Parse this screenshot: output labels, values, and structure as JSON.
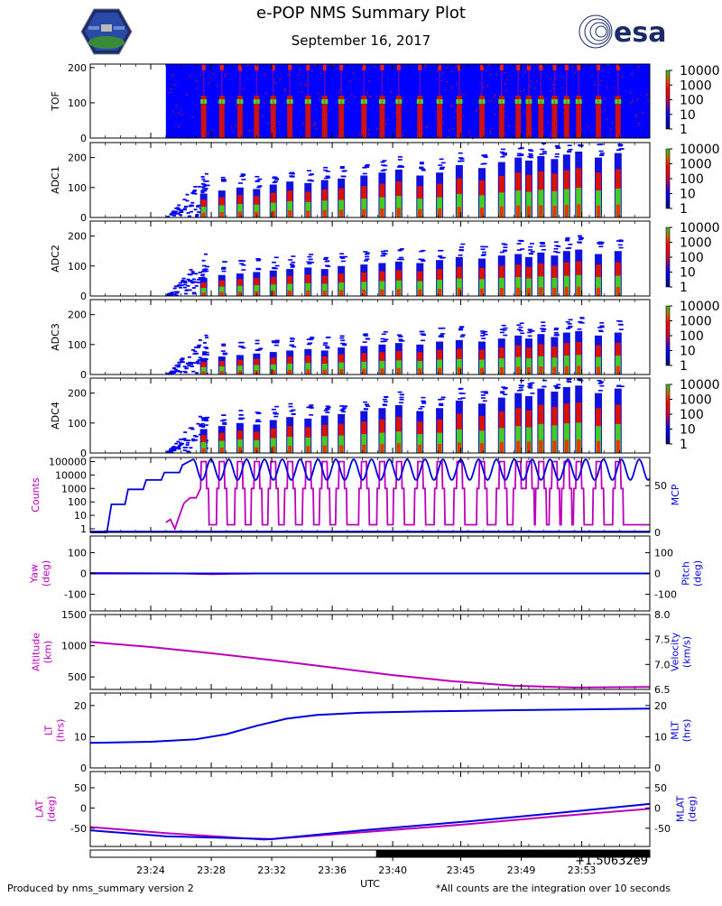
{
  "header": {
    "title": "e-POP NMS Summary Plot",
    "date": "September 16, 2017",
    "left_logo_icon": "epop-mission-patch-icon",
    "right_logo_icon": "esa-logo-icon",
    "esa_wordmark": "esa"
  },
  "footer": {
    "left_note": "Produced by nms_summary version 2",
    "right_note": "*All counts are the integration over 10 seconds",
    "x_axis_label": "UTC",
    "offset_label": "+1.50632e9"
  },
  "colors": {
    "background_blue": "#0000ff",
    "magenta": "#bb00bb",
    "blue": "#0000dd",
    "red": "#ff0000",
    "green": "#33cc33",
    "black": "#000000"
  },
  "chart_data": [
    {
      "type": "heatmap",
      "panel": "TOF",
      "ylabel": "TOF",
      "ylim": [
        0,
        210
      ],
      "yticks": [
        0,
        100,
        200
      ],
      "colorbar": {
        "scale": "log",
        "ticks": [
          "1",
          "10",
          "100",
          "1000",
          "10000"
        ]
      },
      "no_data_before": "23:25",
      "bursts_x": [
        "23:27.5",
        "23:28.7",
        "23:29.9",
        "23:31.0",
        "23:32.1",
        "23:33.2",
        "23:34.4",
        "23:35.5",
        "23:36.6",
        "23:38.1",
        "23:39.3",
        "23:40.4",
        "23:41.8",
        "23:43.1",
        "23:44.4",
        "23:45.9",
        "23:47.2",
        "23:48.3",
        "23:49.0",
        "23:49.8",
        "23:50.7",
        "23:51.5",
        "23:52.3",
        "23:53.6",
        "23:54.9"
      ]
    },
    {
      "type": "heatmap",
      "panel": "ADC1",
      "ylabel": "ADC1",
      "ylim": [
        0,
        250
      ],
      "yticks": [
        0,
        100,
        200
      ],
      "colorbar": {
        "scale": "log",
        "ticks": [
          "1",
          "10",
          "100",
          "1000",
          "10000"
        ]
      },
      "peak_heights": [
        80,
        90,
        100,
        95,
        110,
        120,
        115,
        125,
        130,
        140,
        150,
        160,
        140,
        150,
        175,
        165,
        185,
        200,
        190,
        205,
        195,
        210,
        220,
        200,
        215
      ]
    },
    {
      "type": "heatmap",
      "panel": "ADC2",
      "ylabel": "ADC2",
      "ylim": [
        0,
        250
      ],
      "yticks": [
        0,
        100,
        200
      ],
      "colorbar": {
        "scale": "log",
        "ticks": [
          "1",
          "10",
          "100",
          "1000",
          "10000"
        ]
      },
      "peak_heights": [
        60,
        70,
        75,
        80,
        85,
        90,
        95,
        90,
        100,
        105,
        110,
        115,
        110,
        120,
        130,
        125,
        135,
        140,
        130,
        145,
        135,
        150,
        155,
        140,
        150
      ]
    },
    {
      "type": "heatmap",
      "panel": "ADC3",
      "ylabel": "ADC3",
      "ylim": [
        0,
        250
      ],
      "yticks": [
        0,
        100,
        200
      ],
      "colorbar": {
        "scale": "log",
        "ticks": [
          "1",
          "10",
          "100",
          "1000",
          "10000"
        ]
      },
      "peak_heights": [
        55,
        60,
        65,
        70,
        75,
        80,
        85,
        80,
        90,
        95,
        100,
        105,
        100,
        110,
        115,
        110,
        120,
        130,
        120,
        135,
        125,
        140,
        145,
        130,
        140
      ]
    },
    {
      "type": "heatmap",
      "panel": "ADC4",
      "ylabel": "ADC4",
      "ylim": [
        0,
        250
      ],
      "yticks": [
        0,
        100,
        200
      ],
      "colorbar": {
        "scale": "log",
        "ticks": [
          "1",
          "10",
          "100",
          "1000",
          "10000"
        ]
      },
      "peak_heights": [
        80,
        90,
        100,
        95,
        110,
        120,
        115,
        125,
        130,
        140,
        150,
        160,
        140,
        150,
        175,
        165,
        185,
        200,
        190,
        215,
        205,
        220,
        225,
        200,
        215
      ]
    },
    {
      "type": "line",
      "panel": "Counts/MCP",
      "ylabel_left": "Counts",
      "ylabel_right": "MCP",
      "yticks_left": [
        "1",
        "10",
        "100",
        "1000",
        "10000",
        "100000"
      ],
      "yticks_right": [
        0,
        50
      ],
      "ylim_left": [
        1,
        200000
      ],
      "ylim_right": [
        0,
        80
      ],
      "series": [
        {
          "name": "Counts",
          "color": "#bb00bb",
          "x": [
            "23:25.0",
            "23:25.3",
            "23:25.6",
            "23:25.9",
            "23:26.2",
            "23:26.6",
            "23:27.0"
          ],
          "values": [
            3,
            5,
            1,
            10,
            80,
            200,
            200
          ],
          "oscillating_after": "23:27.3",
          "osc_low": 1,
          "osc_high": 100000
        },
        {
          "name": "MCP",
          "color": "#0000dd",
          "x": [
            "23:20.0",
            "23:21.1",
            "23:21.4",
            "23:22.3",
            "23:22.5",
            "23:23.5",
            "23:23.7",
            "23:24.7",
            "23:24.9",
            "23:25.9",
            "23:26.1",
            "23:26.8"
          ],
          "values": [
            0,
            0,
            30,
            30,
            46,
            46,
            56,
            56,
            64,
            64,
            72,
            78
          ],
          "oscillating_after": "23:26.8",
          "osc_low": 56,
          "osc_high": 78
        },
        {
          "name": "MCP-baseline",
          "color": "#0000dd",
          "x": [
            "23:20.0",
            "23:57.0"
          ],
          "values": [
            1,
            1
          ]
        }
      ]
    },
    {
      "type": "line",
      "panel": "Yaw/Pitch",
      "ylabel_left": "Yaw\n(deg)",
      "ylabel_right": "Pitch\n(deg)",
      "yticks_left": [
        -100,
        0,
        100
      ],
      "yticks_right": [
        -100,
        0,
        100
      ],
      "ylim": [
        -180,
        180
      ],
      "series": [
        {
          "name": "Yaw",
          "color": "#bb00bb",
          "x": [
            "23:20.0",
            "23:26.0",
            "23:28.0",
            "23:31.0",
            "23:57.0"
          ],
          "values": [
            2,
            0,
            -3,
            0,
            0
          ]
        },
        {
          "name": "Pitch",
          "color": "#0000dd",
          "x": [
            "23:20.0",
            "23:57.0"
          ],
          "values": [
            0,
            0
          ]
        }
      ]
    },
    {
      "type": "line",
      "panel": "Altitude/Velocity",
      "ylabel_left": "Altitude\n(km)",
      "ylabel_right": "Velocity\n(km/s)",
      "yticks_left": [
        500,
        1000,
        1500
      ],
      "yticks_right": [
        6.5,
        7.0,
        7.5,
        8.0
      ],
      "ylim_left": [
        300,
        1500
      ],
      "ylim_right": [
        6.5,
        8.0
      ],
      "series": [
        {
          "name": "Altitude",
          "color": "#bb00bb",
          "x": [
            "23:20.0",
            "23:24.0",
            "23:28.0",
            "23:32.0",
            "23:36.0",
            "23:40.0",
            "23:44.0",
            "23:48.0",
            "23:52.0",
            "23:57.0"
          ],
          "values": [
            1060,
            980,
            880,
            770,
            650,
            530,
            430,
            360,
            330,
            340
          ]
        }
      ]
    },
    {
      "type": "line",
      "panel": "LT/MLT",
      "ylabel_left": "LT\n(hrs)",
      "ylabel_right": "MLT\n(hrs)",
      "yticks_left": [
        0,
        10,
        20
      ],
      "yticks_right": [
        0,
        10,
        20
      ],
      "ylim": [
        0,
        24
      ],
      "series": [
        {
          "name": "LT",
          "color": "#0000dd",
          "x": [
            "23:20.0",
            "23:24.0",
            "23:27.0",
            "23:29.0",
            "23:31.0",
            "23:33.0",
            "23:35.0",
            "23:38.0",
            "23:42.0",
            "23:48.0",
            "23:57.0"
          ],
          "values": [
            8.0,
            8.4,
            9.2,
            10.8,
            13.5,
            15.8,
            17.0,
            17.7,
            18.1,
            18.5,
            19.0
          ]
        }
      ]
    },
    {
      "type": "line",
      "panel": "LAT/MLAT",
      "ylabel_left": "LAT\n(deg)",
      "ylabel_right": "MLAT\n(deg)",
      "yticks_left": [
        -50,
        0,
        50
      ],
      "yticks_right": [
        -50,
        0,
        50
      ],
      "ylim": [
        -95,
        90
      ],
      "series": [
        {
          "name": "LAT",
          "color": "#bb00bb",
          "x": [
            "23:20.0",
            "23:25.0",
            "23:31.5",
            "23:38.0",
            "23:45.0",
            "23:51.0",
            "23:57.0"
          ],
          "values": [
            -47,
            -62,
            -78,
            -60,
            -40,
            -20,
            -2
          ]
        },
        {
          "name": "MLAT",
          "color": "#0000dd",
          "x": [
            "23:20.0",
            "23:25.0",
            "23:32.0",
            "23:38.0",
            "23:45.0",
            "23:51.0",
            "23:57.0"
          ],
          "values": [
            -55,
            -70,
            -77,
            -55,
            -33,
            -12,
            10
          ]
        }
      ]
    },
    {
      "type": "bar",
      "panel": "data-coverage",
      "covered_from": "23:38.9",
      "covered_to": "23:57.0"
    }
  ],
  "x_axis": {
    "range": [
      "23:20.0",
      "23:57.0"
    ],
    "tick_labels": [
      "23:24",
      "23:28",
      "23:32",
      "23:36",
      "23:40",
      "23:45",
      "23:49",
      "23:53"
    ],
    "tick_positions": [
      "23:24.0",
      "23:28.0",
      "23:32.0",
      "23:36.0",
      "23:40.0",
      "23:44.5",
      "23:48.5",
      "23:52.5"
    ]
  }
}
